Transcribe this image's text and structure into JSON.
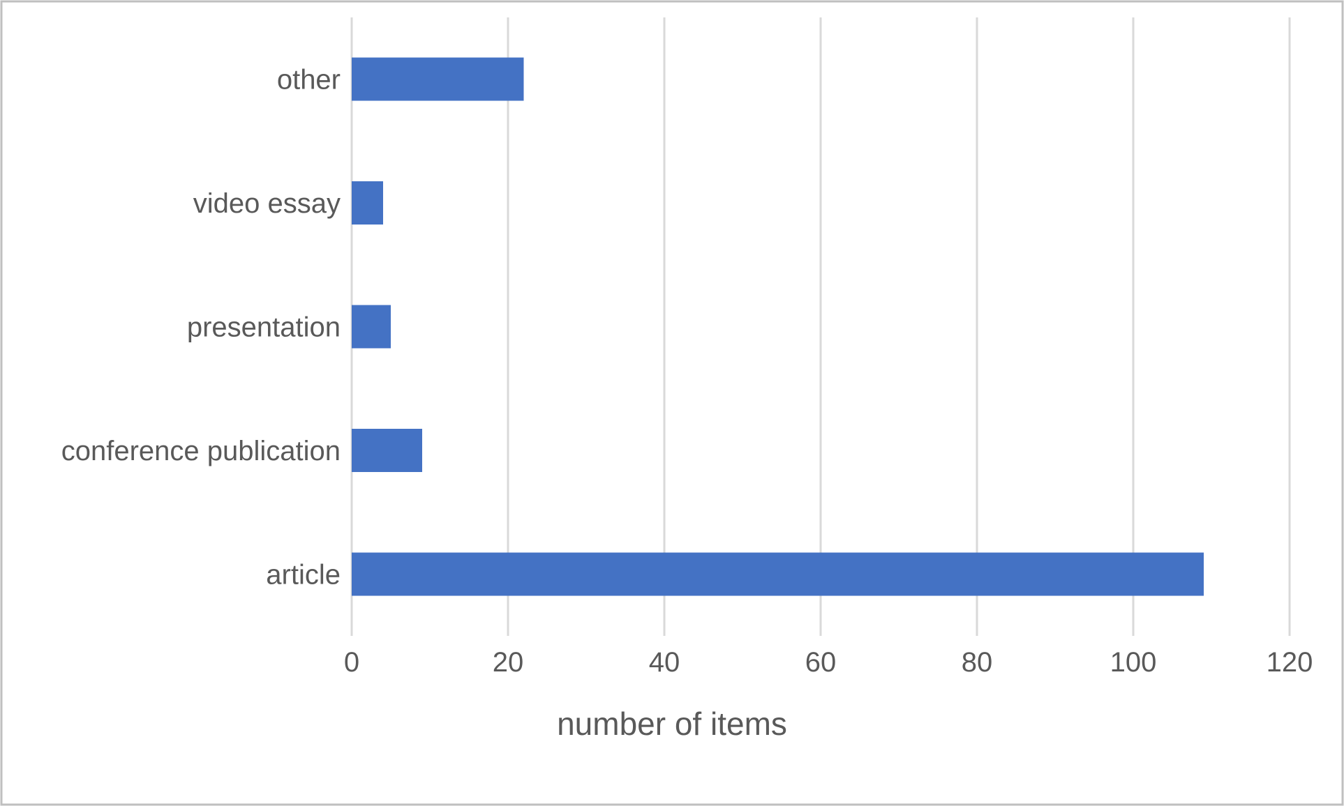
{
  "chart_data": {
    "type": "bar",
    "orientation": "horizontal",
    "title": "",
    "categories": [
      "other",
      "video essay",
      "presentation",
      "conference publication",
      "article"
    ],
    "values": [
      22,
      4,
      5,
      9,
      109
    ],
    "xlabel": "number of items",
    "ylabel": "",
    "xlim": [
      0,
      120
    ],
    "xticks": [
      0,
      20,
      40,
      60,
      80,
      100,
      120
    ],
    "grid": "vertical",
    "legend": "none",
    "bar_color": "#4472c4",
    "gridline_color": "#d9d9d9",
    "text_color": "#595959"
  }
}
